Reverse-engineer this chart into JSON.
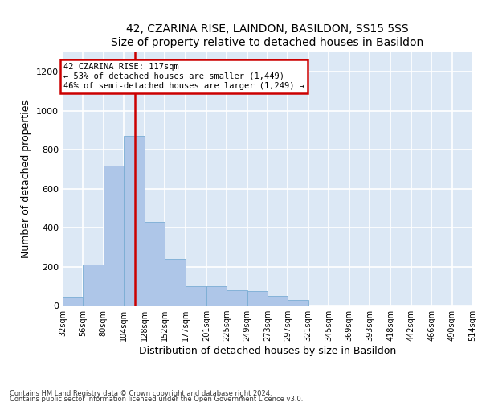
{
  "title1": "42, CZARINA RISE, LAINDON, BASILDON, SS15 5SS",
  "title2": "Size of property relative to detached houses in Basildon",
  "xlabel": "Distribution of detached houses by size in Basildon",
  "ylabel": "Number of detached properties",
  "bar_color": "#aec6e8",
  "bar_edge_color": "#7aadd4",
  "bg_color": "#dce8f5",
  "grid_color": "#ffffff",
  "annotation_box_color": "#cc0000",
  "annotation_line_color": "#cc0000",
  "annotation_text1": "42 CZARINA RISE: 117sqm",
  "annotation_text2": "← 53% of detached houses are smaller (1,449)",
  "annotation_text3": "46% of semi-detached houses are larger (1,249) →",
  "red_line_x": 117,
  "bins": [
    32,
    56,
    80,
    104,
    128,
    152,
    177,
    201,
    225,
    249,
    273,
    297,
    321,
    345,
    369,
    393,
    418,
    442,
    466,
    490,
    514
  ],
  "heights": [
    40,
    210,
    720,
    870,
    430,
    240,
    100,
    100,
    80,
    75,
    50,
    30,
    0,
    0,
    0,
    0,
    0,
    0,
    0,
    0
  ],
  "ylim": [
    0,
    1300
  ],
  "yticks": [
    0,
    200,
    400,
    600,
    800,
    1000,
    1200
  ],
  "footnote1": "Contains HM Land Registry data © Crown copyright and database right 2024.",
  "footnote2": "Contains public sector information licensed under the Open Government Licence v3.0."
}
